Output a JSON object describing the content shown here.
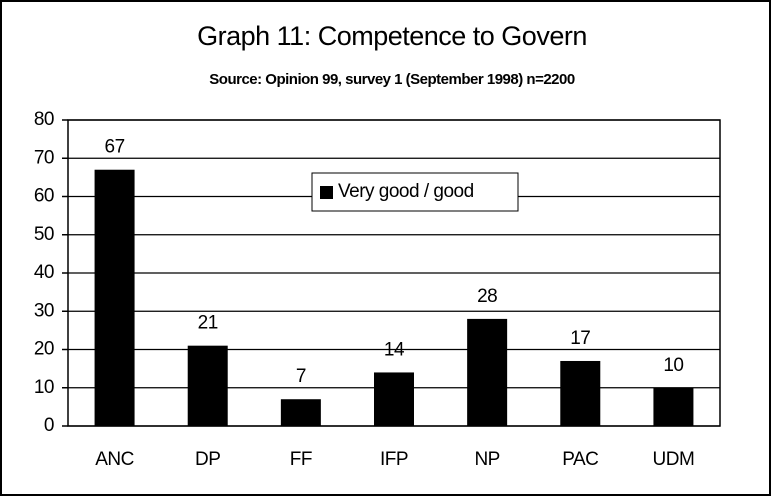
{
  "chart_data": {
    "type": "bar",
    "title": "Graph 11: Competence to Govern",
    "subtitle": "Source: Opinion 99, survey 1 (September 1998) n=2200",
    "categories": [
      "ANC",
      "DP",
      "FF",
      "IFP",
      "NP",
      "PAC",
      "UDM"
    ],
    "series": [
      {
        "name": "Very good / good",
        "color": "#000000",
        "values": [
          67,
          21,
          7,
          14,
          28,
          17,
          10
        ]
      }
    ],
    "ylim": [
      0,
      80
    ],
    "yticks": [
      0,
      10,
      20,
      30,
      40,
      50,
      60,
      70,
      80
    ],
    "grid": true,
    "legend": "top"
  }
}
